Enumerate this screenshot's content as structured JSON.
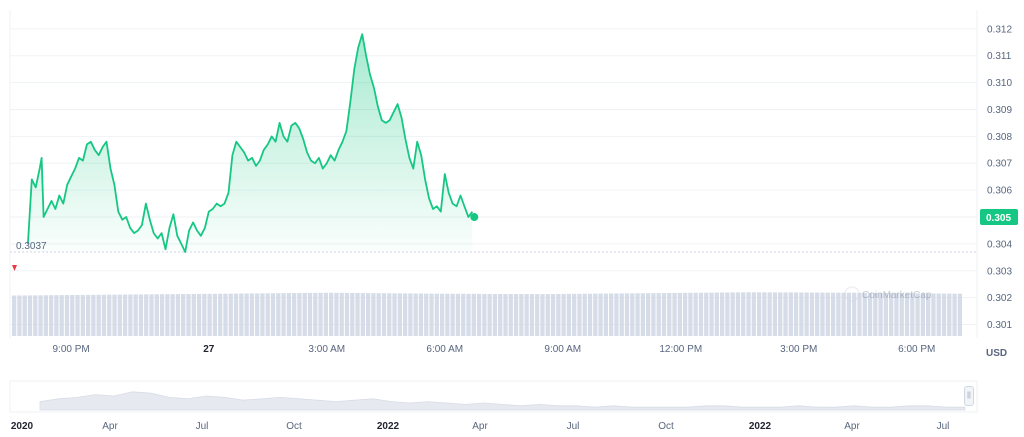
{
  "currency_label": "USD",
  "start_price_label": "0.3037",
  "current_price_label": "0.305",
  "watermark": "CoinMarketCap",
  "nav_handle_glyph": "||",
  "colors": {
    "line": "#16c784",
    "start_marker": "#ea3943",
    "volume": "#cfd6e4",
    "axis_text": "#58667e"
  },
  "chart_data": [
    {
      "type": "area",
      "title": "",
      "xlabel": "",
      "ylabel": "",
      "ylim": [
        0.3005,
        0.3127
      ],
      "y_ticks": [
        0.301,
        0.302,
        0.303,
        0.304,
        0.305,
        0.306,
        0.307,
        0.308,
        0.309,
        0.31,
        0.311,
        0.312
      ],
      "y_tick_labels": [
        "0.301",
        "0.302",
        "0.303",
        "0.304",
        "0.305",
        "0.306",
        "0.307",
        "0.308",
        "0.309",
        "0.310",
        "0.311",
        "0.312"
      ],
      "x_ticks": [
        {
          "t": 20.5,
          "label": "9:00 PM",
          "bold": false
        },
        {
          "t": 24.0,
          "label": "27",
          "bold": true
        },
        {
          "t": 27.0,
          "label": "3:00 AM",
          "bold": false
        },
        {
          "t": 30.0,
          "label": "6:00 AM",
          "bold": false
        },
        {
          "t": 33.0,
          "label": "9:00 AM",
          "bold": false
        },
        {
          "t": 36.0,
          "label": "12:00 PM",
          "bold": false
        },
        {
          "t": 39.0,
          "label": "3:00 PM",
          "bold": false
        },
        {
          "t": 42.0,
          "label": "6:00 PM",
          "bold": false
        }
      ],
      "xlim": [
        19.2,
        43.1
      ],
      "grid": "horizontal",
      "series": [
        {
          "values": [
            [
              19.4,
              0.304
            ],
            [
              19.5,
              0.3064
            ],
            [
              19.6,
              0.3061
            ],
            [
              19.7,
              0.3068
            ],
            [
              19.75,
              0.3072
            ],
            [
              19.8,
              0.305
            ],
            [
              19.9,
              0.3053
            ],
            [
              20.0,
              0.3056
            ],
            [
              20.1,
              0.3053
            ],
            [
              20.2,
              0.3058
            ],
            [
              20.3,
              0.3055
            ],
            [
              20.4,
              0.3062
            ],
            [
              20.5,
              0.3065
            ],
            [
              20.6,
              0.3068
            ],
            [
              20.7,
              0.3072
            ],
            [
              20.8,
              0.3071
            ],
            [
              20.9,
              0.3077
            ],
            [
              21.0,
              0.3078
            ],
            [
              21.1,
              0.3075
            ],
            [
              21.2,
              0.3073
            ],
            [
              21.3,
              0.3076
            ],
            [
              21.4,
              0.3078
            ],
            [
              21.5,
              0.3068
            ],
            [
              21.6,
              0.3062
            ],
            [
              21.7,
              0.3052
            ],
            [
              21.8,
              0.3049
            ],
            [
              21.9,
              0.305
            ],
            [
              22.0,
              0.3046
            ],
            [
              22.1,
              0.3044
            ],
            [
              22.2,
              0.3045
            ],
            [
              22.3,
              0.3047
            ],
            [
              22.4,
              0.3055
            ],
            [
              22.5,
              0.3049
            ],
            [
              22.6,
              0.3044
            ],
            [
              22.7,
              0.3042
            ],
            [
              22.8,
              0.3044
            ],
            [
              22.9,
              0.3038
            ],
            [
              23.0,
              0.3046
            ],
            [
              23.1,
              0.3051
            ],
            [
              23.2,
              0.3043
            ],
            [
              23.3,
              0.304
            ],
            [
              23.4,
              0.3037
            ],
            [
              23.5,
              0.3045
            ],
            [
              23.6,
              0.3048
            ],
            [
              23.7,
              0.3045
            ],
            [
              23.8,
              0.3043
            ],
            [
              23.9,
              0.3046
            ],
            [
              24.0,
              0.3052
            ],
            [
              24.1,
              0.3053
            ],
            [
              24.2,
              0.3055
            ],
            [
              24.3,
              0.3054
            ],
            [
              24.4,
              0.3055
            ],
            [
              24.5,
              0.3059
            ],
            [
              24.6,
              0.3073
            ],
            [
              24.7,
              0.3078
            ],
            [
              24.8,
              0.3076
            ],
            [
              24.9,
              0.3074
            ],
            [
              25.0,
              0.3071
            ],
            [
              25.1,
              0.3072
            ],
            [
              25.2,
              0.3069
            ],
            [
              25.3,
              0.3071
            ],
            [
              25.4,
              0.3075
            ],
            [
              25.5,
              0.3077
            ],
            [
              25.6,
              0.308
            ],
            [
              25.7,
              0.3078
            ],
            [
              25.8,
              0.3085
            ],
            [
              25.9,
              0.308
            ],
            [
              26.0,
              0.3078
            ],
            [
              26.1,
              0.3084
            ],
            [
              26.2,
              0.3085
            ],
            [
              26.3,
              0.3083
            ],
            [
              26.4,
              0.3079
            ],
            [
              26.5,
              0.3074
            ],
            [
              26.6,
              0.3071
            ],
            [
              26.7,
              0.307
            ],
            [
              26.8,
              0.3072
            ],
            [
              26.9,
              0.3068
            ],
            [
              27.0,
              0.307
            ],
            [
              27.1,
              0.3073
            ],
            [
              27.2,
              0.3071
            ],
            [
              27.3,
              0.3075
            ],
            [
              27.4,
              0.3078
            ],
            [
              27.5,
              0.3082
            ],
            [
              27.6,
              0.3093
            ],
            [
              27.7,
              0.3105
            ],
            [
              27.8,
              0.3113
            ],
            [
              27.9,
              0.3118
            ],
            [
              28.0,
              0.311
            ],
            [
              28.1,
              0.3103
            ],
            [
              28.2,
              0.3098
            ],
            [
              28.3,
              0.3091
            ],
            [
              28.4,
              0.3086
            ],
            [
              28.5,
              0.3085
            ],
            [
              28.6,
              0.3086
            ],
            [
              28.7,
              0.3089
            ],
            [
              28.8,
              0.3092
            ],
            [
              28.9,
              0.3087
            ],
            [
              29.0,
              0.3079
            ],
            [
              29.1,
              0.3072
            ],
            [
              29.2,
              0.3068
            ],
            [
              29.3,
              0.3078
            ],
            [
              29.4,
              0.3073
            ],
            [
              29.5,
              0.3064
            ],
            [
              29.6,
              0.3057
            ],
            [
              29.7,
              0.3053
            ],
            [
              29.8,
              0.3054
            ],
            [
              29.9,
              0.3052
            ],
            [
              30.0,
              0.3066
            ],
            [
              30.1,
              0.3059
            ],
            [
              30.2,
              0.3055
            ],
            [
              30.3,
              0.3054
            ],
            [
              30.4,
              0.3058
            ],
            [
              30.5,
              0.3054
            ],
            [
              30.6,
              0.305
            ],
            [
              30.7,
              0.3052
            ]
          ]
        }
      ],
      "start_marker": {
        "t": 19.2,
        "value": 0.3037,
        "label": "0.3037"
      },
      "current_marker": {
        "value": 0.305,
        "label": "0.305"
      }
    },
    {
      "type": "bar",
      "title": "",
      "series": [
        {
          "values": [
            0.88,
            0.9,
            0.92,
            0.94,
            0.92,
            0.91,
            0.93,
            0.95,
            0.94,
            0.92
          ]
        }
      ]
    },
    {
      "type": "area",
      "title": "",
      "x_ticks": [
        {
          "label": "2020",
          "bold": true
        },
        {
          "label": "Apr",
          "bold": false
        },
        {
          "label": "Jul",
          "bold": false
        },
        {
          "label": "Oct",
          "bold": false
        },
        {
          "label": "2022",
          "bold": true
        },
        {
          "label": "Apr",
          "bold": false
        },
        {
          "label": "Jul",
          "bold": false
        },
        {
          "label": "Oct",
          "bold": false
        },
        {
          "label": "2022",
          "bold": true
        },
        {
          "label": "Apr",
          "bold": false
        },
        {
          "label": "Jul",
          "bold": false
        }
      ]
    }
  ]
}
